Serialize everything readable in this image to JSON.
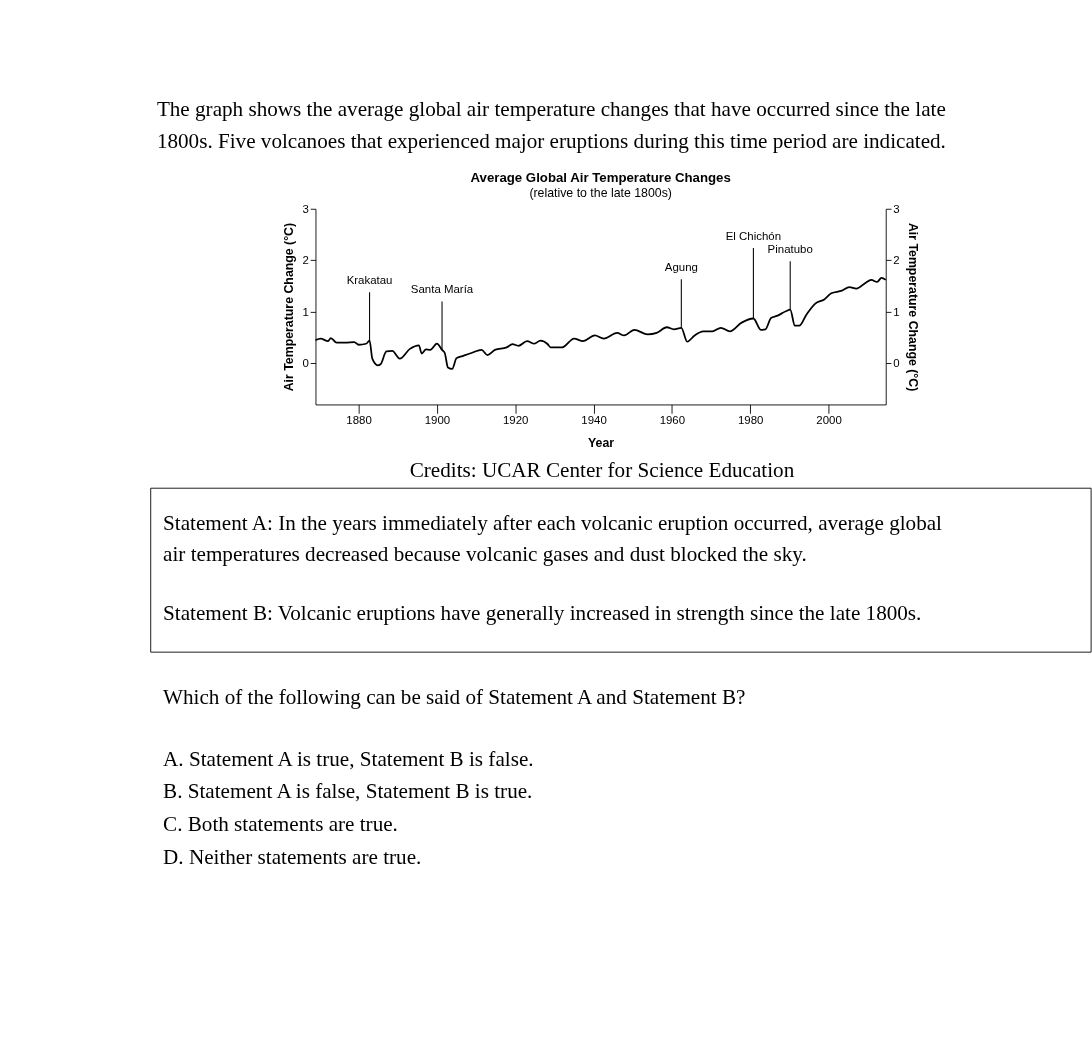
{
  "chart_data": {
    "type": "line",
    "title": "Average Global Air Temperature Changes",
    "subtitle": "(relative to the late 1800s)",
    "xlabel": "Year",
    "ylabel": "Air Temperature Change (°C)",
    "y2label": "Air Temperature Change (°C)",
    "x": [
      1869.0,
      1870.3,
      1872.2,
      1872.9,
      1874.4,
      1876.6,
      1878.9,
      1880.0,
      1881.9,
      1882.8,
      1883.5,
      1884.9,
      1885.6,
      1887.1,
      1888.6,
      1890.5,
      1893.1,
      1895.4,
      1896.1,
      1897.2,
      1898.3,
      1900.0,
      1901.3,
      1902.0,
      1902.8,
      1903.9,
      1905.0,
      1906.5,
      1908.8,
      1911.4,
      1912.9,
      1914.8,
      1917.8,
      1919.3,
      1920.8,
      1923.0,
      1924.9,
      1926.4,
      1928.3,
      1929.0,
      1932.0,
      1935.0,
      1937.3,
      1940.3,
      1942.6,
      1946.0,
      1947.8,
      1950.4,
      1953.8,
      1956.1,
      1958.7,
      1960.5,
      1962.4,
      1963.9,
      1965.8,
      1968.0,
      1970.3,
      1972.5,
      1974.8,
      1977.8,
      1980.8,
      1982.7,
      1983.9,
      1985.3,
      1986.8,
      1989.1,
      1990.2,
      1991.4,
      1992.5,
      1994.3,
      1996.6,
      1998.9,
      2000.7,
      2003.4,
      2005.3,
      2007.1,
      2009.4,
      2010.9,
      2012.4,
      2013.5,
      2014.6
    ],
    "series": [
      {
        "color": "#000000",
        "values": [
          0.45,
          0.48,
          0.43,
          0.49,
          0.4,
          0.4,
          0.41,
          0.36,
          0.38,
          0.44,
          0.09,
          -0.04,
          -0.02,
          0.23,
          0.24,
          0.09,
          0.28,
          0.35,
          0.19,
          0.27,
          0.26,
          0.38,
          0.26,
          0.2,
          -0.08,
          -0.11,
          0.1,
          0.14,
          0.2,
          0.26,
          0.16,
          0.26,
          0.31,
          0.37,
          0.34,
          0.43,
          0.38,
          0.44,
          0.37,
          0.31,
          0.31,
          0.48,
          0.43,
          0.54,
          0.48,
          0.59,
          0.54,
          0.65,
          0.56,
          0.59,
          0.7,
          0.66,
          0.69,
          0.42,
          0.54,
          0.62,
          0.62,
          0.69,
          0.62,
          0.79,
          0.87,
          0.65,
          0.66,
          0.88,
          0.92,
          1.01,
          1.04,
          0.73,
          0.73,
          0.94,
          1.16,
          1.24,
          1.36,
          1.41,
          1.48,
          1.45,
          1.56,
          1.62,
          1.58,
          1.66,
          1.62
        ]
      }
    ],
    "xlim": [
      1869,
      2014.6
    ],
    "xticks": [
      1880,
      1900,
      1920,
      1940,
      1960,
      1980,
      2000
    ],
    "ylim": [
      -0.8,
      3
    ],
    "yticks": [
      0,
      1,
      2,
      3
    ],
    "y2lim": [
      -0.8,
      3
    ],
    "y2ticks": [
      0,
      1,
      2,
      3
    ],
    "grid": false,
    "annotations": [
      {
        "text": "Krakatau",
        "x": 1882.8,
        "y": 0.44
      },
      {
        "text": "Santa María",
        "x": 1901.3,
        "y": 0.26
      },
      {
        "text": "Agung",
        "x": 1962.4,
        "y": 0.69
      },
      {
        "text": "El Chichón",
        "x": 1980.8,
        "y": 0.87
      },
      {
        "text": "Pinatubo",
        "x": 1990.2,
        "y": 1.04
      },
      "The graph shows the average global air temperature changes that have occurred since the late 1800s. Five volcanoes that experienced major eruptions during this time period are indicated.",
      "Credits: UCAR Center for Science Education",
      "Statement A: In the years immediately after each volcanic eruption occurred, average global air temperatures decreased because volcanic gases and dust blocked the sky.",
      "Statement B:  Volcanic eruptions have generally increased in strength since the late 1800s.",
      "Which of the following can be said of Statement A and Statement B?",
      "A. Statement A is true, Statement B is false.",
      "B. Statement A is false, Statement B is true.",
      "C. Both statements are true.",
      "D. Neither statements are true."
    ]
  }
}
